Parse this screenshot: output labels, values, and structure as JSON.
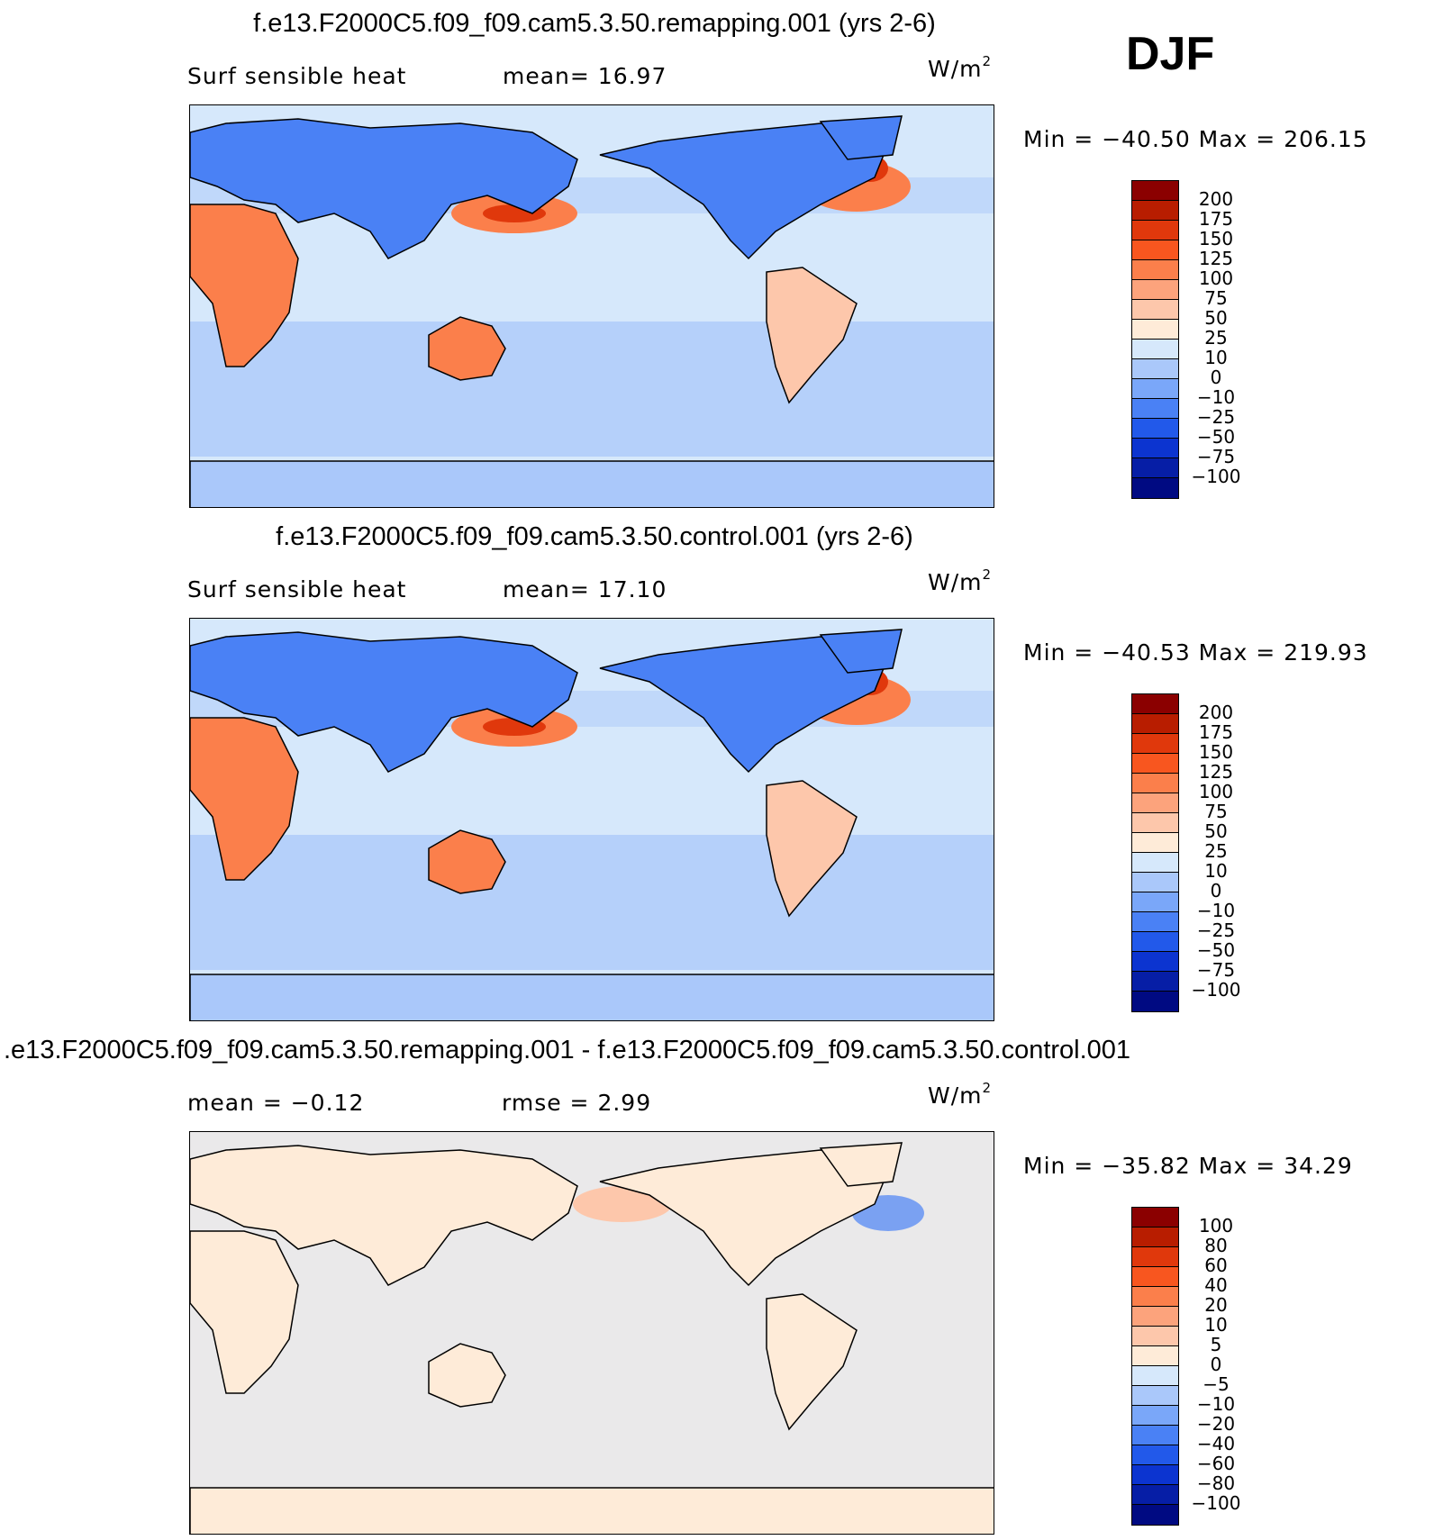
{
  "season_label": "DJF",
  "units_base": "W/m",
  "units_exp": "2",
  "panels": [
    {
      "title": "f.e13.F2000C5.f09_f09.cam5.3.50.remapping.001 (yrs 2-6)",
      "var_label": "Surf sensible heat",
      "stat_text": "mean=   16.97",
      "minmax": "Min = −40.50 Max = 206.15",
      "colorbar_labels": [
        "200",
        "175",
        "150",
        "125",
        "100",
        "75",
        "50",
        "25",
        "10",
        "0",
        "−10",
        "−25",
        "−50",
        "−75",
        "−100"
      ],
      "colorbar_colors": [
        "#8b0000",
        "#b81d00",
        "#e0380c",
        "#f8561f",
        "#fb7f4b",
        "#fca37c",
        "#fdc7ab",
        "#feebd8",
        "#d6e8fb",
        "#aac8fa",
        "#7aa7f9",
        "#4a81f5",
        "#2259ea",
        "#0c34d0",
        "#061ea6",
        "#000a82"
      ],
      "mean_value": 16.97
    },
    {
      "title": "f.e13.F2000C5.f09_f09.cam5.3.50.control.001 (yrs 2-6)",
      "var_label": "Surf sensible heat",
      "stat_text": "mean=   17.10",
      "minmax": "Min = −40.53 Max = 219.93",
      "colorbar_labels": [
        "200",
        "175",
        "150",
        "125",
        "100",
        "75",
        "50",
        "25",
        "10",
        "0",
        "−10",
        "−25",
        "−50",
        "−75",
        "−100"
      ],
      "colorbar_colors": [
        "#8b0000",
        "#b81d00",
        "#e0380c",
        "#f8561f",
        "#fb7f4b",
        "#fca37c",
        "#fdc7ab",
        "#feebd8",
        "#d6e8fb",
        "#aac8fa",
        "#7aa7f9",
        "#4a81f5",
        "#2259ea",
        "#0c34d0",
        "#061ea6",
        "#000a82"
      ],
      "mean_value": 17.1
    },
    {
      "title": ".e13.F2000C5.f09_f09.cam5.3.50.remapping.001 - f.e13.F2000C5.f09_f09.cam5.3.50.control.001",
      "var_label": "mean =   −0.12",
      "stat_text": "rmse =    2.99",
      "minmax": "Min = −35.82 Max =   34.29",
      "colorbar_labels": [
        "100",
        "80",
        "60",
        "40",
        "20",
        "10",
        "5",
        "0",
        "−5",
        "−10",
        "−20",
        "−40",
        "−60",
        "−80",
        "−100"
      ],
      "colorbar_colors": [
        "#8b0000",
        "#b81d00",
        "#e0380c",
        "#f8561f",
        "#fb7f4b",
        "#fca37c",
        "#fdc7ab",
        "#feebd8",
        "#d6e8fb",
        "#aac8fa",
        "#7aa7f9",
        "#4a81f5",
        "#2259ea",
        "#0c34d0",
        "#061ea6",
        "#000a82"
      ],
      "mean_value": -0.12,
      "rmse_value": 2.99
    }
  ],
  "map_colors": {
    "ocean_light": "#d6e8fb",
    "ocean_mid": "#aac8fa",
    "cold": "#4a81f5",
    "colder": "#2259ea",
    "warm_light": "#feebd8",
    "warm": "#fdc7ab",
    "warmer": "#fb7f4b",
    "hot": "#e0380c",
    "coast": "#000000"
  }
}
